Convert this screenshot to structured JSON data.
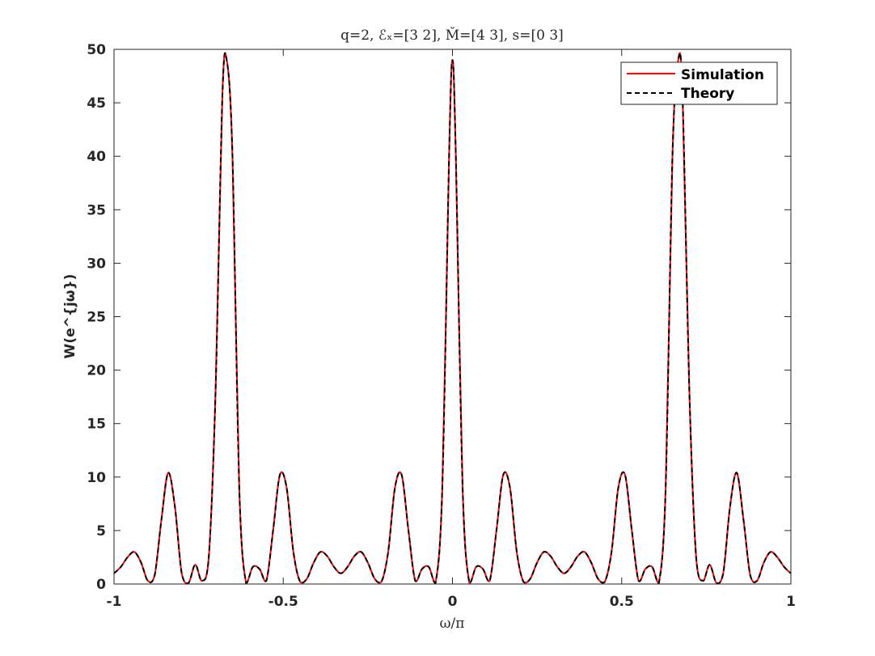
{
  "chart_data": {
    "type": "line",
    "title": "q=2, ℰₓ=[3 2], M̌=[4 3], s=[0 3]",
    "xlabel": "ω/π",
    "ylabel": "W(e^{jω})",
    "xlim": [
      -1,
      1
    ],
    "ylim": [
      0,
      50
    ],
    "xticks": [
      -1,
      -0.5,
      0,
      0.5,
      1
    ],
    "xtick_labels": [
      "-1",
      "-0.5",
      "0",
      "0.5",
      "1"
    ],
    "yticks": [
      0,
      5,
      10,
      15,
      20,
      25,
      30,
      35,
      40,
      45,
      50
    ],
    "ytick_labels": [
      "0",
      "5",
      "10",
      "15",
      "20",
      "25",
      "30",
      "35",
      "40",
      "45",
      "50"
    ],
    "grid": false,
    "legend_position": "top-right",
    "series": [
      {
        "name": "Simulation",
        "color": "#ff0000",
        "style": "solid",
        "x": [
          -1,
          -0.98,
          -0.96,
          -0.94,
          -0.92,
          -0.9,
          -0.88,
          -0.86,
          -0.84,
          -0.82,
          -0.8,
          -0.78,
          -0.76,
          -0.74,
          -0.72,
          -0.7,
          -0.68,
          -0.667,
          -0.65,
          -0.63,
          -0.61,
          -0.59,
          -0.57,
          -0.55,
          -0.53,
          -0.51,
          -0.49,
          -0.47,
          -0.45,
          -0.43,
          -0.41,
          -0.39,
          -0.37,
          -0.35,
          -0.33,
          -0.31,
          -0.29,
          -0.27,
          -0.25,
          -0.23,
          -0.21,
          -0.19,
          -0.17,
          -0.15,
          -0.13,
          -0.11,
          -0.09,
          -0.07,
          -0.05,
          -0.03,
          -0.01,
          0,
          0.01,
          0.03,
          0.05,
          0.07,
          0.09,
          0.11,
          0.13,
          0.15,
          0.17,
          0.19,
          0.21,
          0.23,
          0.25,
          0.27,
          0.29,
          0.31,
          0.33,
          0.35,
          0.37,
          0.39,
          0.41,
          0.43,
          0.45,
          0.47,
          0.49,
          0.51,
          0.53,
          0.55,
          0.57,
          0.59,
          0.61,
          0.63,
          0.65,
          0.667,
          0.68,
          0.7,
          0.72,
          0.74,
          0.76,
          0.78,
          0.8,
          0.82,
          0.84,
          0.86,
          0.88,
          0.9,
          0.92,
          0.94,
          0.96,
          0.98,
          1
        ],
        "y": [
          1.0,
          1.6,
          2.5,
          3.0,
          2.0,
          0.3,
          0.8,
          6.0,
          10.4,
          7.2,
          1.0,
          0.1,
          1.8,
          0.3,
          2.5,
          18.0,
          45.5,
          49.0,
          40.0,
          9.0,
          0.1,
          1.6,
          1.4,
          0.3,
          5.0,
          10.2,
          9.0,
          3.0,
          0.2,
          0.5,
          2.0,
          3.0,
          2.6,
          1.6,
          1.0,
          1.6,
          2.6,
          3.0,
          2.0,
          0.5,
          0.2,
          3.0,
          9.0,
          10.2,
          5.0,
          0.3,
          1.4,
          1.6,
          0.1,
          9.0,
          40.0,
          49.0,
          40.0,
          9.0,
          0.1,
          1.6,
          1.4,
          0.3,
          5.0,
          10.2,
          9.0,
          3.0,
          0.2,
          0.5,
          2.0,
          3.0,
          2.6,
          1.6,
          1.0,
          1.6,
          2.6,
          3.0,
          2.0,
          0.5,
          0.2,
          3.0,
          9.0,
          10.2,
          5.0,
          0.3,
          1.4,
          1.6,
          0.1,
          9.0,
          40.0,
          49.0,
          45.5,
          18.0,
          2.5,
          0.3,
          1.8,
          0.1,
          1.0,
          7.2,
          10.4,
          6.0,
          0.8,
          0.3,
          2.0,
          3.0,
          2.5,
          1.6,
          1.0
        ]
      },
      {
        "name": "Theory",
        "color": "#000000",
        "style": "dashed",
        "x": [
          -1,
          -0.98,
          -0.96,
          -0.94,
          -0.92,
          -0.9,
          -0.88,
          -0.86,
          -0.84,
          -0.82,
          -0.8,
          -0.78,
          -0.76,
          -0.74,
          -0.72,
          -0.7,
          -0.68,
          -0.667,
          -0.65,
          -0.63,
          -0.61,
          -0.59,
          -0.57,
          -0.55,
          -0.53,
          -0.51,
          -0.49,
          -0.47,
          -0.45,
          -0.43,
          -0.41,
          -0.39,
          -0.37,
          -0.35,
          -0.33,
          -0.31,
          -0.29,
          -0.27,
          -0.25,
          -0.23,
          -0.21,
          -0.19,
          -0.17,
          -0.15,
          -0.13,
          -0.11,
          -0.09,
          -0.07,
          -0.05,
          -0.03,
          -0.01,
          0,
          0.01,
          0.03,
          0.05,
          0.07,
          0.09,
          0.11,
          0.13,
          0.15,
          0.17,
          0.19,
          0.21,
          0.23,
          0.25,
          0.27,
          0.29,
          0.31,
          0.33,
          0.35,
          0.37,
          0.39,
          0.41,
          0.43,
          0.45,
          0.47,
          0.49,
          0.51,
          0.53,
          0.55,
          0.57,
          0.59,
          0.61,
          0.63,
          0.65,
          0.667,
          0.68,
          0.7,
          0.72,
          0.74,
          0.76,
          0.78,
          0.8,
          0.82,
          0.84,
          0.86,
          0.88,
          0.9,
          0.92,
          0.94,
          0.96,
          0.98,
          1
        ],
        "y": [
          1.0,
          1.6,
          2.5,
          3.0,
          2.0,
          0.3,
          0.8,
          6.0,
          10.4,
          7.2,
          1.0,
          0.1,
          1.8,
          0.3,
          2.5,
          18.0,
          45.5,
          49.0,
          40.0,
          9.0,
          0.1,
          1.6,
          1.4,
          0.3,
          5.0,
          10.2,
          9.0,
          3.0,
          0.2,
          0.5,
          2.0,
          3.0,
          2.6,
          1.6,
          1.0,
          1.6,
          2.6,
          3.0,
          2.0,
          0.5,
          0.2,
          3.0,
          9.0,
          10.2,
          5.0,
          0.3,
          1.4,
          1.6,
          0.1,
          9.0,
          40.0,
          49.0,
          40.0,
          9.0,
          0.1,
          1.6,
          1.4,
          0.3,
          5.0,
          10.2,
          9.0,
          3.0,
          0.2,
          0.5,
          2.0,
          3.0,
          2.6,
          1.6,
          1.0,
          1.6,
          2.6,
          3.0,
          2.0,
          0.5,
          0.2,
          3.0,
          9.0,
          10.2,
          5.0,
          0.3,
          1.4,
          1.6,
          0.1,
          9.0,
          40.0,
          49.0,
          45.5,
          18.0,
          2.5,
          0.3,
          1.8,
          0.1,
          1.0,
          7.2,
          10.4,
          6.0,
          0.8,
          0.3,
          2.0,
          3.0,
          2.5,
          1.6,
          1.0
        ]
      }
    ]
  }
}
